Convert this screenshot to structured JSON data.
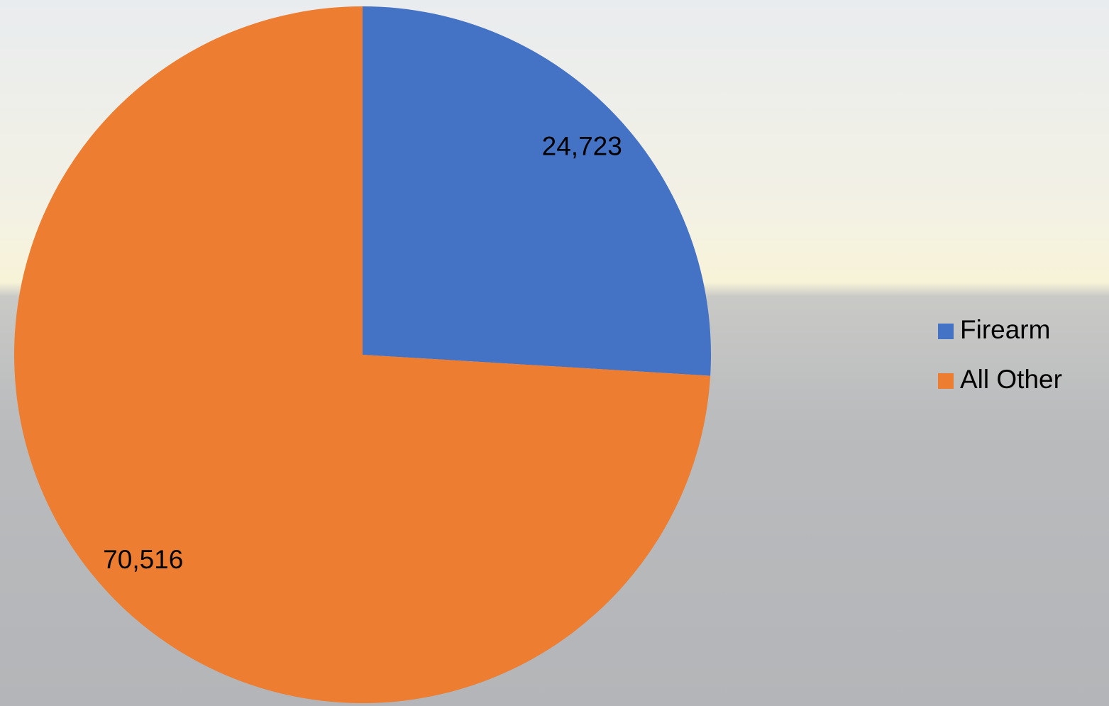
{
  "chart_data": {
    "type": "pie",
    "categories": [
      "Firearm",
      "All Other"
    ],
    "values": [
      24723,
      70516
    ],
    "value_labels": [
      "24,723",
      "70,516"
    ],
    "colors": [
      "#4472c4",
      "#ed7d31"
    ],
    "legend": "right"
  }
}
